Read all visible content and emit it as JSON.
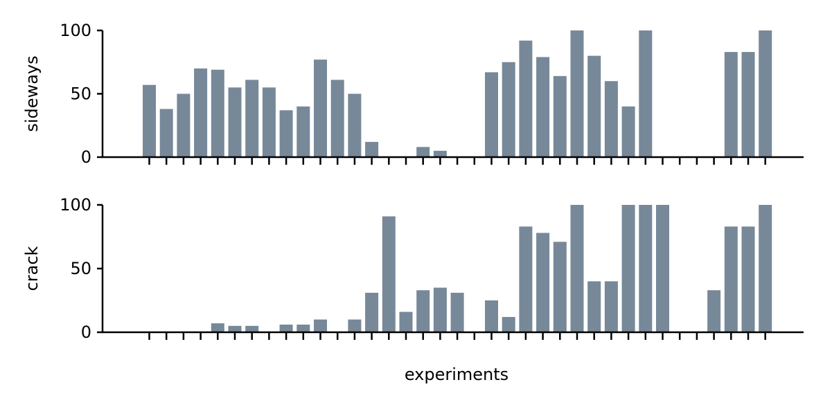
{
  "chart_data": {
    "type": "bar",
    "xlabel": "experiments",
    "bar_color": "#778899",
    "grid": false,
    "legend": "none",
    "categories_count": 37,
    "panels": [
      {
        "ylabel": "sideways",
        "ylim": [
          0,
          100
        ],
        "yticks": [
          "0",
          "50",
          "100"
        ],
        "values": [
          57,
          38,
          50,
          70,
          69,
          55,
          61,
          55,
          37,
          40,
          77,
          61,
          50,
          12,
          0,
          0,
          8,
          5,
          0,
          0,
          67,
          75,
          92,
          79,
          64,
          100,
          80,
          60,
          40,
          100,
          0,
          0,
          0,
          0,
          83,
          83,
          100
        ]
      },
      {
        "ylabel": "crack",
        "ylim": [
          0,
          100
        ],
        "yticks": [
          "0",
          "50",
          "100"
        ],
        "values": [
          0,
          0,
          0,
          0,
          7,
          5,
          5,
          0,
          6,
          6,
          10,
          0,
          10,
          31,
          91,
          16,
          33,
          35,
          31,
          0,
          25,
          12,
          83,
          78,
          71,
          100,
          40,
          40,
          100,
          100,
          100,
          0,
          0,
          33,
          83,
          83,
          100
        ]
      }
    ]
  }
}
